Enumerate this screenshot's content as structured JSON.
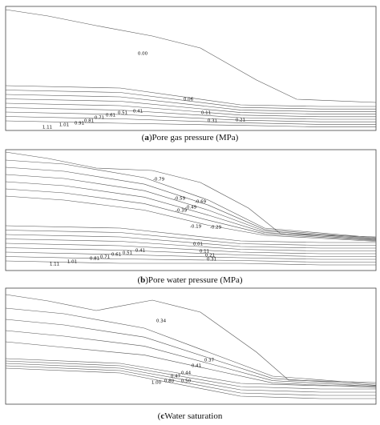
{
  "panels": [
    {
      "caption": {
        "prefix": "(",
        "letter": "a",
        "text": ")Pore gas pressure (MPa)"
      },
      "labels": [
        "0.00",
        "0.06",
        "0.11",
        "0.31",
        "0.21",
        "0.41",
        "0.51",
        "0.61",
        "0.71",
        "0.81",
        "0.91",
        "1.01",
        "1.11"
      ]
    },
    {
      "caption": {
        "prefix": "(",
        "letter": "b",
        "text": ")Pore water pressure (MPa)"
      },
      "labels": [
        "-0.79",
        "-0.59",
        "-0.69",
        "-0.49",
        "-0.39",
        "-0.19",
        "-0.29",
        "0.01",
        "0.11",
        "0.21",
        "0.31",
        "0.41",
        "0.51",
        "0.61",
        "0.71",
        "0.81",
        "1.01",
        "1.11"
      ]
    },
    {
      "caption": {
        "prefix": "(",
        "letter": "c",
        "text": "Water saturation"
      },
      "labels": [
        "0.34",
        "0.37",
        "0.41",
        "0.44",
        "0.47",
        "0.50",
        "0.80",
        "1.00"
      ]
    }
  ]
}
